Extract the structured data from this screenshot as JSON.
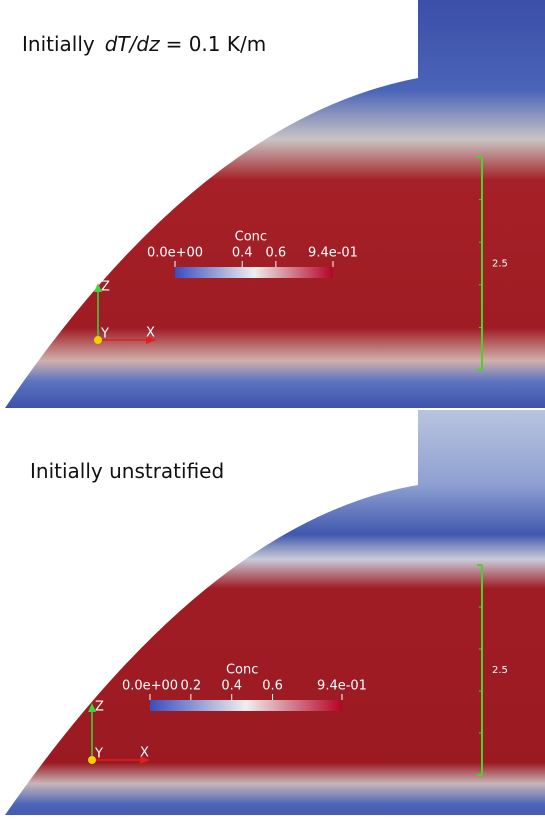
{
  "panels": [
    {
      "title": {
        "prefix": "Initially",
        "italic": "dT/dz",
        "suffix": "= 0.1 K/m"
      },
      "colorbar": {
        "title": "Conc",
        "ticks": [
          {
            "value": 0,
            "label": "0.0e+00"
          },
          0.4,
          0.6,
          {
            "value": 0.94,
            "label": "9.4e-01"
          }
        ]
      },
      "scale_bar": "2.5",
      "axes": {
        "z": "Z",
        "y": "Y",
        "x": "X"
      }
    },
    {
      "title": {
        "prefix": "Initially unstratified"
      },
      "colorbar": {
        "title": "Conc",
        "ticks": [
          {
            "value": 0,
            "label": "0.0e+00"
          },
          0.2,
          0.4,
          0.6,
          {
            "value": 0.94,
            "label": "9.4e-01"
          }
        ]
      },
      "scale_bar": "2.5",
      "axes": {
        "z": "Z",
        "y": "Y",
        "x": "X"
      }
    }
  ]
}
